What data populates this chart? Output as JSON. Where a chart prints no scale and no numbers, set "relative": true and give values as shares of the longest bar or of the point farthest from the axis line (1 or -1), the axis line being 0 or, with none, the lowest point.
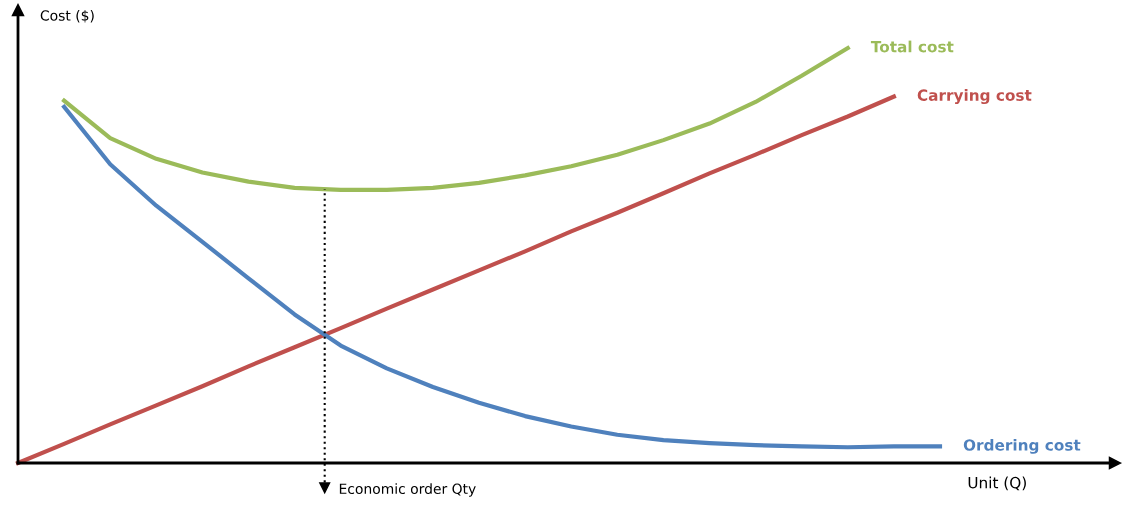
{
  "chart_data": {
    "type": "line",
    "relative": true,
    "xlabel": "Unit (Q)",
    "ylabel": "Cost ($)",
    "categories": [
      null,
      null,
      null,
      null,
      null,
      null,
      null,
      null,
      null,
      null,
      null,
      null,
      null,
      null,
      null,
      null,
      null,
      null,
      null,
      null,
      null
    ],
    "series": [
      {
        "name": "Total cost",
        "color": "#9bbb59",
        "values": [
          null,
          0.873,
          0.783,
          0.733,
          0.7,
          0.678,
          0.663,
          0.658,
          0.658,
          0.663,
          0.675,
          0.693,
          0.715,
          0.743,
          0.778,
          0.818,
          0.87,
          0.933,
          1.0,
          null,
          null
        ]
      },
      {
        "name": "Carrying cost",
        "color": "#c0504d",
        "values": [
          0,
          0.046,
          0.093,
          0.139,
          0.185,
          0.233,
          0.279,
          0.325,
          0.372,
          0.418,
          0.464,
          0.51,
          0.558,
          0.603,
          0.65,
          0.698,
          0.743,
          0.79,
          0.835,
          0.883,
          null
        ]
      },
      {
        "name": "Ordering cost",
        "color": "#4f81bd",
        "values": [
          null,
          0.858,
          0.72,
          0.62,
          0.533,
          0.445,
          0.358,
          0.283,
          0.228,
          0.183,
          0.145,
          0.113,
          0.088,
          0.068,
          0.055,
          0.048,
          0.043,
          0.04,
          0.038,
          0.04,
          0.04
        ]
      }
    ],
    "annotations": [
      "Economic order Qty"
    ],
    "legend": false,
    "marker": "none",
    "line_style": "solid"
  }
}
